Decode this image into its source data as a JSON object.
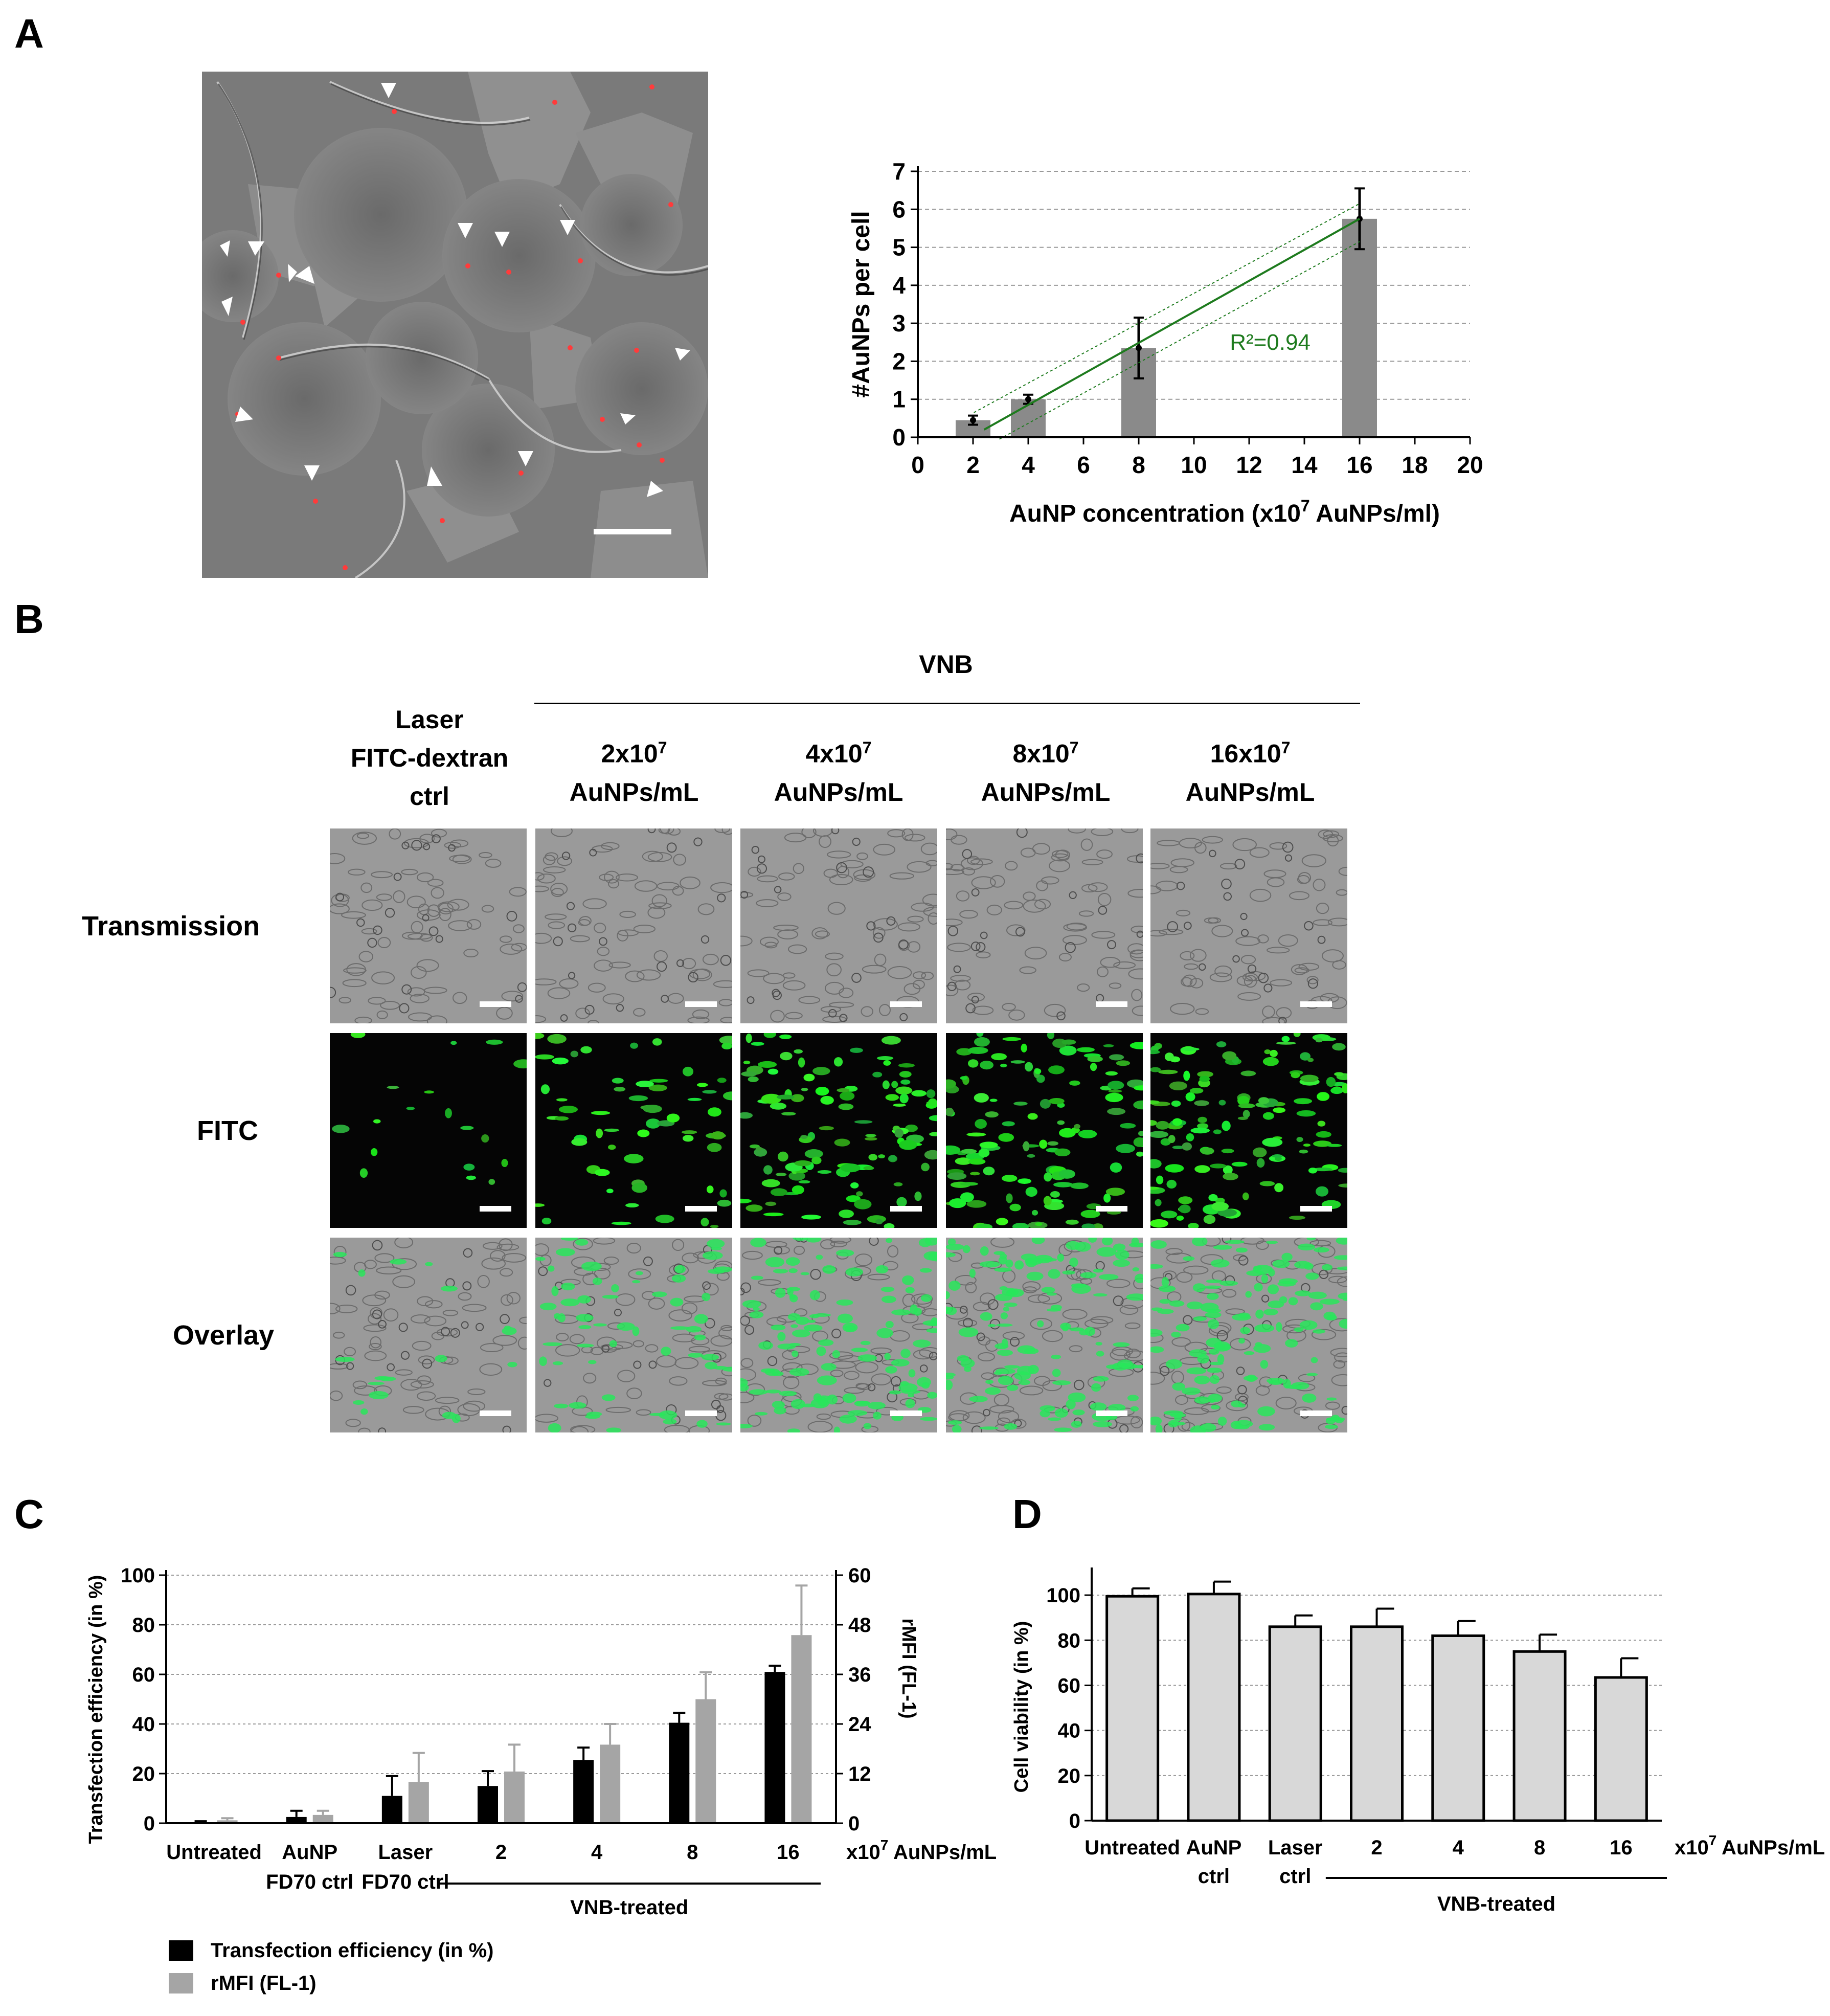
{
  "figure": {
    "panels": [
      "A",
      "B",
      "C",
      "D"
    ]
  },
  "panel_b": {
    "header_group": "VNB",
    "columns": [
      {
        "line1": "Laser",
        "line2": "FITC-dextran",
        "line3": "ctrl"
      },
      {
        "base": "2x10",
        "exp": "7",
        "unit": "AuNPs/mL"
      },
      {
        "base": "4x10",
        "exp": "7",
        "unit": "AuNPs/mL"
      },
      {
        "base": "8x10",
        "exp": "7",
        "unit": "AuNPs/mL"
      },
      {
        "base": "16x10",
        "exp": "7",
        "unit": "AuNPs/mL"
      }
    ],
    "rows": [
      "Transmission",
      "FITC",
      "Overlay"
    ],
    "fitc_intensity": [
      0.08,
      0.35,
      0.7,
      0.75,
      0.8
    ]
  },
  "chart_data": [
    {
      "panel": "A",
      "type": "bar",
      "x": [
        2,
        4,
        8,
        16
      ],
      "values": [
        0.45,
        1.0,
        2.35,
        5.75
      ],
      "errors": [
        0.12,
        0.12,
        0.8,
        0.8
      ],
      "xlabel": "AuNP concentration (x10",
      "xlabel_exp": "7",
      "xlabel_end": " AuNPs/ml)",
      "ylabel": "#AuNPs per cell",
      "xlim": [
        0,
        20
      ],
      "ylim": [
        0,
        7
      ],
      "xticks": [
        0,
        2,
        4,
        6,
        8,
        10,
        12,
        14,
        16,
        18,
        20
      ],
      "yticks": [
        0,
        1,
        2,
        3,
        4,
        5,
        6,
        7
      ],
      "fit": {
        "from": [
          2.4,
          0.2
        ],
        "to": [
          16,
          5.75
        ],
        "label": "R²=0.94",
        "color": "#1e7b1e"
      },
      "bar_color": "#8a8a8a"
    },
    {
      "panel": "C",
      "type": "bar",
      "categories": [
        "Untreated",
        "AuNP\nFD70 ctrl",
        "Laser\nFD70 ctrl",
        "2",
        "4",
        "8",
        "16"
      ],
      "series": [
        {
          "name": "Transfection efficiency (in %)",
          "values": [
            0.3,
            2.5,
            11,
            15,
            25.5,
            40.5,
            61
          ],
          "errors": [
            0.5,
            2.5,
            8,
            6,
            5,
            4,
            2.5
          ],
          "color": "#000000",
          "axis": "left"
        },
        {
          "name": "rMFI (FL-1)",
          "values": [
            0.7,
            2,
            10,
            12.5,
            19,
            30,
            45.5
          ],
          "errors": [
            0.5,
            1,
            7,
            6.5,
            5,
            6.5,
            12
          ],
          "color": "#a5a5a5",
          "axis": "right"
        }
      ],
      "ylabel": "Transfection efficiency (in %)",
      "ylabel_right": "rMFI (FL-1)",
      "ylim": [
        0,
        100
      ],
      "ylim_right": [
        0,
        60
      ],
      "yticks": [
        0,
        20,
        40,
        60,
        80,
        100
      ],
      "yticks_right": [
        0,
        12,
        24,
        36,
        48,
        60
      ],
      "unit_label": "x10",
      "unit_exp": "7",
      "unit_end": " AuNPs/mL",
      "group_label": "VNB-treated",
      "legend_position": "bottom-left"
    },
    {
      "panel": "D",
      "type": "bar",
      "categories": [
        "Untreated",
        "AuNP\nctrl",
        "Laser\nctrl",
        "2",
        "4",
        "8",
        "16"
      ],
      "values": [
        99.5,
        100.5,
        86,
        86,
        82,
        75,
        63.5
      ],
      "errors": [
        3.5,
        5.5,
        5,
        8,
        6.5,
        7.5,
        8.5
      ],
      "ylabel": "Cell viability (in %)",
      "ylim": [
        0,
        110
      ],
      "yticks": [
        0,
        20,
        40,
        60,
        80,
        100
      ],
      "unit_label": "x10",
      "unit_exp": "7",
      "unit_end": " AuNPs/mL",
      "group_label": "VNB-treated",
      "bar_color": "#d8d8d8"
    }
  ]
}
